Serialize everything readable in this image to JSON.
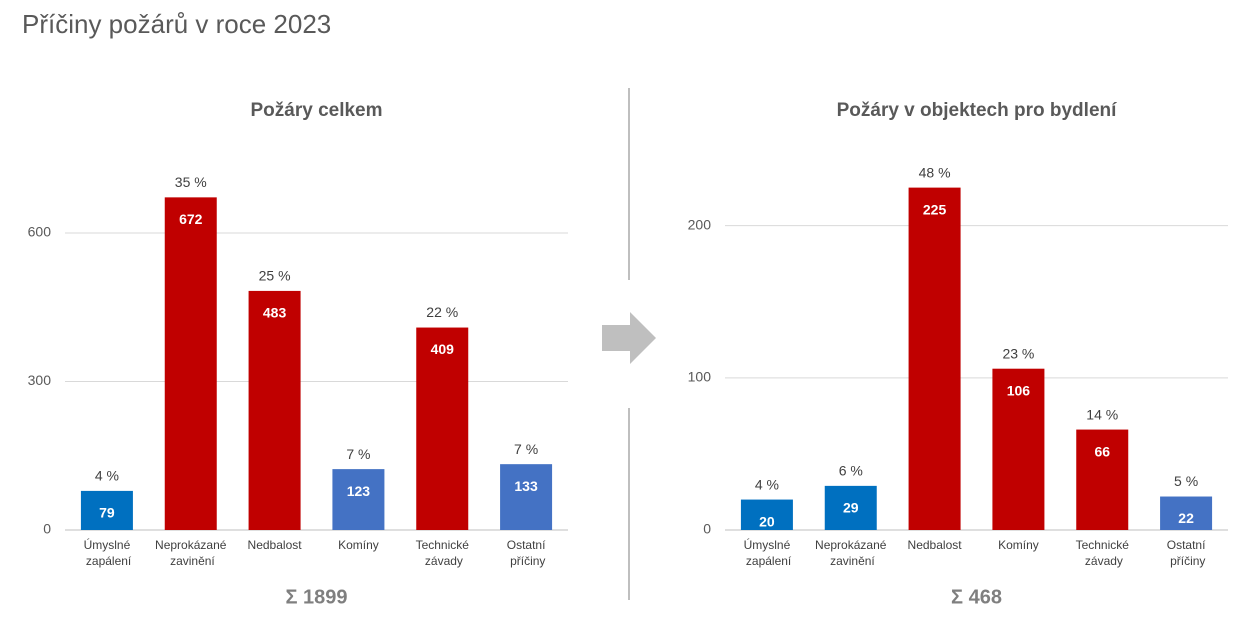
{
  "title": "Příčiny požárů v roce 2023",
  "chart_data": [
    {
      "type": "bar",
      "title": "Požáry celkem",
      "categories": [
        "Úmyslné zapálení",
        "Neprokázané zavinění",
        "Nedbalost",
        "Komíny",
        "Technické závady",
        "Ostatní příčiny"
      ],
      "values": [
        79,
        672,
        483,
        123,
        409,
        133
      ],
      "percent_labels": [
        "4 %",
        "35 %",
        "25 %",
        "7 %",
        "22 %",
        "7 %"
      ],
      "colors": [
        "#0070c0",
        "#c00000",
        "#c00000",
        "#4472c4",
        "#c00000",
        "#4472c4"
      ],
      "ylim": [
        0,
        700
      ],
      "yticks": [
        0,
        300,
        600
      ],
      "grid": true,
      "total_label": "Σ 1899"
    },
    {
      "type": "bar",
      "title": "Požáry v objektech pro bydlení",
      "categories": [
        "Úmyslné zapálení",
        "Neprokázané zavinění",
        "Nedbalost",
        "Komíny",
        "Technické závady",
        "Ostatní příčiny"
      ],
      "values": [
        20,
        29,
        225,
        106,
        66,
        22
      ],
      "percent_labels": [
        "4 %",
        "6 %",
        "48 %",
        "23 %",
        "14 %",
        "5 %"
      ],
      "colors": [
        "#0070c0",
        "#0070c0",
        "#c00000",
        "#c00000",
        "#c00000",
        "#4472c4"
      ],
      "ylim": [
        0,
        230
      ],
      "yticks": [
        0,
        100,
        200
      ],
      "grid": true,
      "total_label": "Σ 468"
    }
  ]
}
